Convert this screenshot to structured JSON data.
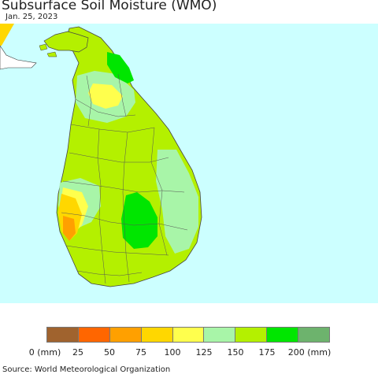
{
  "title": "Subsurface Soil Moisture (WMO)",
  "date": "Jan. 25, 2023",
  "source": "Source: World Meteorological Organization",
  "legend": {
    "colors": [
      "#a0632e",
      "#ff6600",
      "#ffa000",
      "#ffd700",
      "#ffff4d",
      "#a8f5a8",
      "#b4f000",
      "#00e600",
      "#6db36d"
    ],
    "ticks": [
      "0 (mm)",
      "25",
      "50",
      "75",
      "100",
      "125",
      "150",
      "175",
      "200 (mm)"
    ]
  },
  "colors": {
    "ocean": "#ccffff",
    "land_dominant": "#b4f000",
    "land_other": "#ffffff",
    "border": "#444444"
  }
}
